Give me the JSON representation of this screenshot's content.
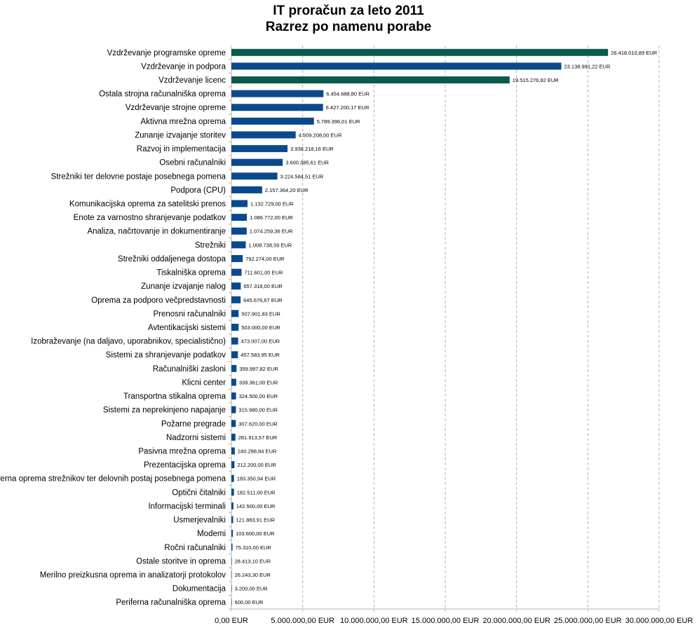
{
  "chart_data": {
    "type": "bar",
    "orientation": "horizontal",
    "title": "IT proračun za leto 2011",
    "subtitle": "Razrez po namenu porabe",
    "xlim": [
      0,
      30000000
    ],
    "x_ticks": [
      0,
      5000000,
      10000000,
      15000000,
      20000000,
      25000000,
      30000000
    ],
    "x_tick_labels": [
      "0,00 EUR",
      "5.000.000,00 EUR",
      "10.000.000,00 EUR",
      "15.000.000,00 EUR",
      "20.000.000,00 EUR",
      "25.000.000,00 EUR",
      "30.000.000,00 EUR"
    ],
    "grid": "vertical dashed",
    "colors": {
      "primary": "#0a4a8c",
      "highlight": "#0b5a4e"
    },
    "categories": [
      "Vzdrževanje programske opreme",
      "Vzdrževanje in podpora",
      "Vzdrževanje licenc",
      "Ostala strojna računalniška oprema",
      "Vzdrževanje strojne opreme",
      "Aktivna mrežna oprema",
      "Zunanje izvajanje storitev",
      "Razvoj in implementacija",
      "Osebni računalniki",
      "Strežniki ter delovne postaje posebnega pomena",
      "Podpora (CPU)",
      "Komunikacijska oprema za satelitski prenos",
      "Enote za varnostno shranjevanje podatkov",
      "Analiza, načrtovanje in dokumentiranje",
      "Strežniki",
      "Strežniki oddaljenega dostopa",
      "Tiskalniška oprema",
      "Zunanje izvajanje nalog",
      "Oprema za podporo večpredstavnosti",
      "Prenosni računalniki",
      "Avtentikacijski sistemi",
      "Izobraževanje (na daljavo, uporabnikov, specialistično)",
      "Sistemi za shranjevanje podatkov",
      "Računalniški zasloni",
      "Klicni center",
      "Transportna stikalna oprema",
      "Sistemi za neprekinjeno napajanje",
      "Požarne pregrade",
      "Nadzorni sistemi",
      "Pasivna mrežna oprema",
      "Prezentacijska oprema",
      "Periferna oprema strežnikov ter delovnih postaj posebnega pomena",
      "Optični čitalniki",
      "Informacijski terminali",
      "Usmerjevalniki",
      "Modemi",
      "Ročni računalniki",
      "Ostale storitve in oprema",
      "Merilno preizkusna oprema in analizatorji protokolov",
      "Dokumentacija",
      "Periferna računalniška oprema"
    ],
    "values": [
      26418010.89,
      23138991.22,
      19515276.92,
      6454688.8,
      6427200.17,
      5789396.01,
      4509208.0,
      3938218.16,
      3600385.61,
      3224584.51,
      2157364.2,
      1132729.0,
      1086772.0,
      1074259.36,
      1008738.59,
      792274.0,
      711601.0,
      657318.0,
      645676.67,
      507901.83,
      503000.0,
      473007.0,
      457583.95,
      359997.82,
      339361.0,
      324500.0,
      315980.0,
      307620.0,
      281913.57,
      240288.84,
      212200.0,
      183350.94,
      182511.0,
      142500.0,
      121883.91,
      103600.0,
      75310.0,
      28413.1,
      26243.3,
      3200.0,
      600.0
    ],
    "value_labels": [
      "26.418.010,89 EUR",
      "23.138.991,22 EUR",
      "19.515.276,92 EUR",
      "6.454.688,80 EUR",
      "6.427.200,17 EUR",
      "5.789.396,01 EUR",
      "4.509.208,00 EUR",
      "3.938.218,16 EUR",
      "3.600.385,61 EUR",
      "3.224.584,51 EUR",
      "2.157.364,20 EUR",
      "1.132.729,00 EUR",
      "1.086.772,00 EUR",
      "1.074.259,36 EUR",
      "1.008.738,59 EUR",
      "792.274,00 EUR",
      "711.601,00 EUR",
      "657.318,00 EUR",
      "645.676,67 EUR",
      "507.901,83 EUR",
      "503.000,00 EUR",
      "473.007,00 EUR",
      "457.583,95 EUR",
      "359.997,82 EUR",
      "339.361,00 EUR",
      "324.500,00 EUR",
      "315.980,00 EUR",
      "307.620,00 EUR",
      "281.913,57 EUR",
      "240.288,84 EUR",
      "212.200,00 EUR",
      "183.350,94 EUR",
      "182.511,00 EUR",
      "142.500,00 EUR",
      "121.883,91 EUR",
      "103.600,00 EUR",
      "75.310,00 EUR",
      "28.413,10 EUR",
      "26.243,30 EUR",
      "3.200,00 EUR",
      "600,00 EUR"
    ],
    "highlight_indices": [
      0,
      2
    ]
  }
}
